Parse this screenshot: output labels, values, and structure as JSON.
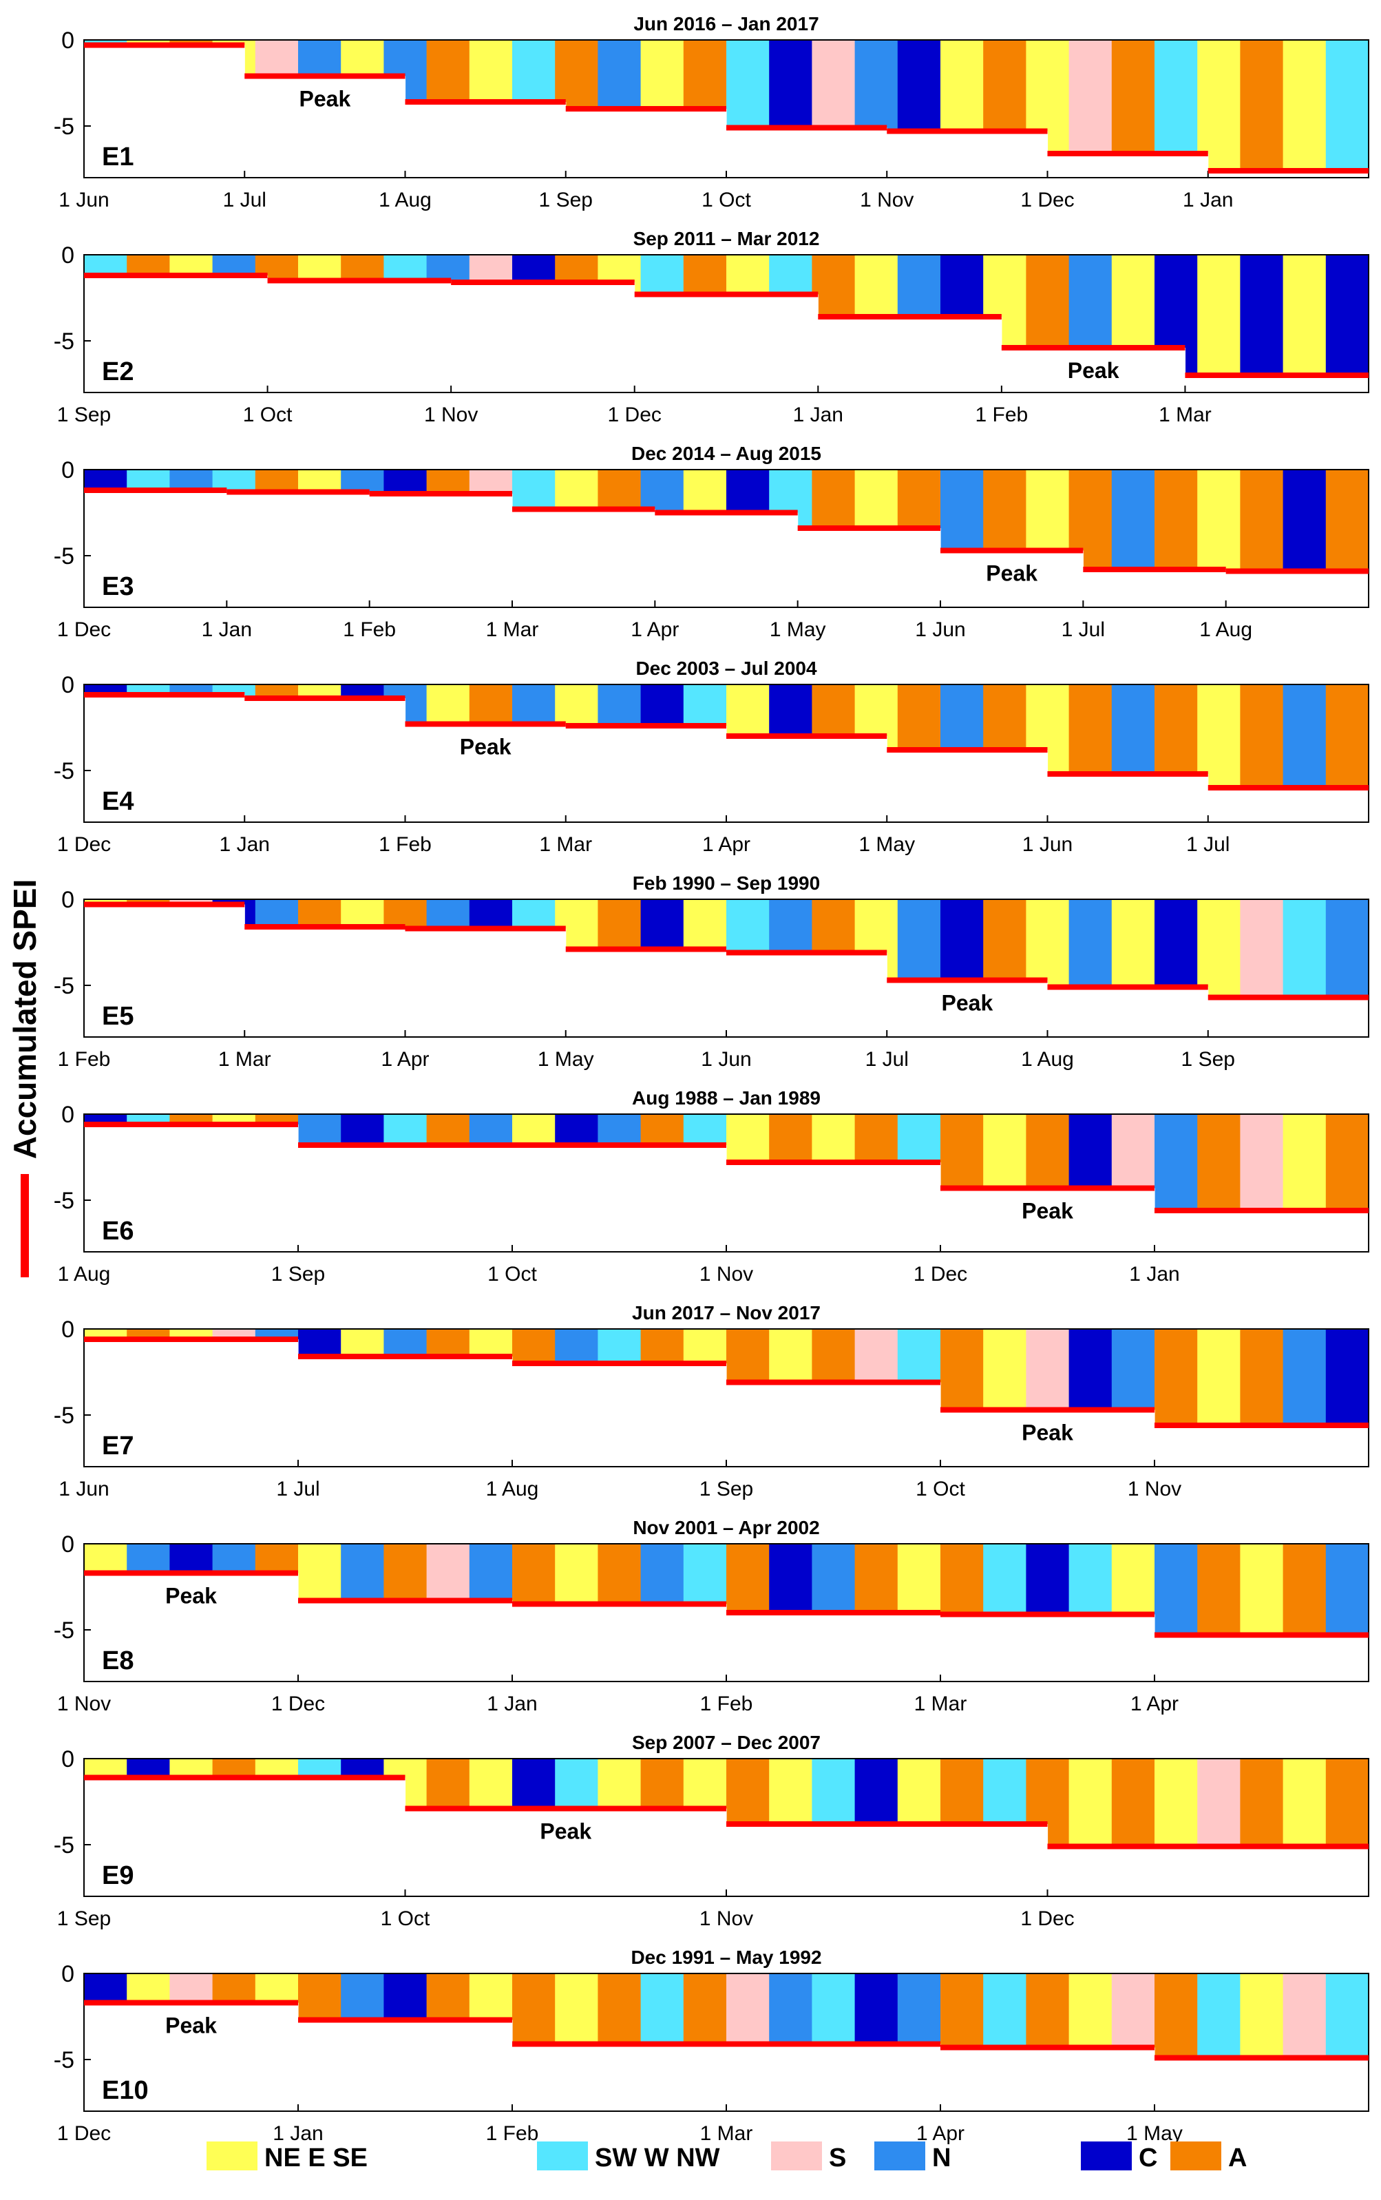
{
  "figure": {
    "y_axis_title": "Accumulated SPEI",
    "ylim": [
      -8,
      0
    ],
    "y_ticks": [
      "0",
      "-5"
    ],
    "y_tick_values": [
      0,
      -5
    ]
  },
  "legend": [
    {
      "label": "NE  E  SE",
      "color": "#ffff55"
    },
    {
      "label": "SW  W  NW",
      "color": "#55e6ff"
    },
    {
      "label": "S",
      "color": "#ffc8c8"
    },
    {
      "label": "N",
      "color": "#2e8cf0"
    },
    {
      "label": "C",
      "color": "#0000cc"
    },
    {
      "label": "A",
      "color": "#f58200"
    }
  ],
  "colors": {
    "NE_E_SE": "#ffff55",
    "SW_W_NW": "#55e6ff",
    "S": "#ffc8c8",
    "N": "#2e8cf0",
    "C": "#0000cc",
    "A": "#f58200",
    "spei_line": "#ff0000",
    "axis": "#000000"
  },
  "chart_data": [
    {
      "type": "step-line over categorical weather-type timeline",
      "event": "E1",
      "title": "Jun 2016 – Jan 2017",
      "month_ticks": [
        "1 Jun",
        "1 Jul",
        "1 Aug",
        "1 Sep",
        "1 Oct",
        "1 Nov",
        "1 Dec",
        "1 Jan"
      ],
      "months": 8,
      "steps": [
        -0.3,
        -2.1,
        -3.6,
        -4.0,
        -5.1,
        -5.3,
        -6.6,
        -7.6
      ],
      "peak_month_index": 1,
      "weather_types": [
        "SW_W_NW",
        "NE_E_SE",
        "A",
        "NE_E_SE",
        "S",
        "N",
        "NE_E_SE",
        "N",
        "A",
        "NE_E_SE",
        "SW_W_NW",
        "A",
        "N",
        "NE_E_SE",
        "A",
        "SW_W_NW",
        "C",
        "S",
        "N",
        "C",
        "NE_E_SE",
        "A",
        "NE_E_SE",
        "S",
        "A",
        "SW_W_NW",
        "NE_E_SE",
        "A",
        "NE_E_SE",
        "SW_W_NW"
      ]
    },
    {
      "type": "step-line over categorical weather-type timeline",
      "event": "E2",
      "title": "Sep 2011 – Mar 2012",
      "month_ticks": [
        "1 Sep",
        "1 Oct",
        "1 Nov",
        "1 Dec",
        "1 Jan",
        "1 Feb",
        "1 Mar"
      ],
      "months": 7,
      "steps": [
        -1.2,
        -1.5,
        -1.6,
        -2.3,
        -3.6,
        -5.4,
        -7.0
      ],
      "peak_month_index": 5,
      "weather_types": [
        "SW_W_NW",
        "A",
        "NE_E_SE",
        "N",
        "A",
        "NE_E_SE",
        "A",
        "SW_W_NW",
        "N",
        "S",
        "C",
        "A",
        "NE_E_SE",
        "SW_W_NW",
        "A",
        "NE_E_SE",
        "SW_W_NW",
        "A",
        "NE_E_SE",
        "N",
        "C",
        "NE_E_SE",
        "A",
        "N",
        "NE_E_SE",
        "C",
        "NE_E_SE",
        "C",
        "NE_E_SE",
        "C"
      ]
    },
    {
      "type": "step-line over categorical weather-type timeline",
      "event": "E3",
      "title": "Dec 2014 – Aug 2015",
      "month_ticks": [
        "1 Dec",
        "1 Jan",
        "1 Feb",
        "1 Mar",
        "1 Apr",
        "1 May",
        "1 Jun",
        "1 Jul",
        "1 Aug"
      ],
      "months": 9,
      "steps": [
        -1.2,
        -1.3,
        -1.4,
        -2.3,
        -2.5,
        -3.4,
        -4.7,
        -5.8,
        -5.9
      ],
      "peak_month_index": 6,
      "weather_types": [
        "C",
        "SW_W_NW",
        "N",
        "SW_W_NW",
        "A",
        "NE_E_SE",
        "N",
        "C",
        "A",
        "S",
        "SW_W_NW",
        "NE_E_SE",
        "A",
        "N",
        "NE_E_SE",
        "C",
        "SW_W_NW",
        "A",
        "NE_E_SE",
        "A",
        "N",
        "A",
        "NE_E_SE",
        "A",
        "N",
        "A",
        "NE_E_SE",
        "A",
        "C",
        "A"
      ]
    },
    {
      "type": "step-line over categorical weather-type timeline",
      "event": "E4",
      "title": "Dec 2003 – Jul 2004",
      "month_ticks": [
        "1 Dec",
        "1 Jan",
        "1 Feb",
        "1 Mar",
        "1 Apr",
        "1 May",
        "1 Jun",
        "1 Jul"
      ],
      "months": 8,
      "steps": [
        -0.6,
        -0.8,
        -2.3,
        -2.4,
        -3.0,
        -3.8,
        -5.2,
        -6.0
      ],
      "peak_month_index": 2,
      "weather_types": [
        "C",
        "SW_W_NW",
        "N",
        "SW_W_NW",
        "A",
        "NE_E_SE",
        "C",
        "N",
        "NE_E_SE",
        "A",
        "N",
        "NE_E_SE",
        "N",
        "C",
        "SW_W_NW",
        "NE_E_SE",
        "C",
        "A",
        "NE_E_SE",
        "A",
        "N",
        "A",
        "NE_E_SE",
        "A",
        "N",
        "A",
        "NE_E_SE",
        "A",
        "N",
        "A"
      ]
    },
    {
      "type": "step-line over categorical weather-type timeline",
      "event": "E5",
      "title": "Feb 1990 – Sep 1990",
      "month_ticks": [
        "1 Feb",
        "1 Mar",
        "1 Apr",
        "1 May",
        "1 Jun",
        "1 Jul",
        "1 Aug",
        "1 Sep"
      ],
      "months": 8,
      "steps": [
        -0.3,
        -1.6,
        -1.7,
        -2.9,
        -3.1,
        -4.7,
        -5.1,
        -5.7
      ],
      "peak_month_index": 5,
      "weather_types": [
        "NE_E_SE",
        "A",
        "S",
        "C",
        "N",
        "A",
        "NE_E_SE",
        "A",
        "N",
        "C",
        "SW_W_NW",
        "NE_E_SE",
        "A",
        "C",
        "NE_E_SE",
        "SW_W_NW",
        "N",
        "A",
        "NE_E_SE",
        "N",
        "C",
        "A",
        "NE_E_SE",
        "N",
        "NE_E_SE",
        "C",
        "NE_E_SE",
        "S",
        "SW_W_NW",
        "N"
      ]
    },
    {
      "type": "step-line over categorical weather-type timeline",
      "event": "E6",
      "title": "Aug 1988 – Jan 1989",
      "month_ticks": [
        "1 Aug",
        "1 Sep",
        "1 Oct",
        "1 Nov",
        "1 Dec",
        "1 Jan"
      ],
      "months": 6,
      "steps": [
        -0.6,
        -1.8,
        -1.8,
        -2.8,
        -4.3,
        -5.6
      ],
      "peak_month_index": 4,
      "weather_types": [
        "C",
        "SW_W_NW",
        "A",
        "NE_E_SE",
        "A",
        "N",
        "C",
        "SW_W_NW",
        "A",
        "N",
        "NE_E_SE",
        "C",
        "N",
        "A",
        "SW_W_NW",
        "NE_E_SE",
        "A",
        "NE_E_SE",
        "A",
        "SW_W_NW",
        "A",
        "NE_E_SE",
        "A",
        "C",
        "S",
        "N",
        "A",
        "S",
        "NE_E_SE",
        "A"
      ]
    },
    {
      "type": "step-line over categorical weather-type timeline",
      "event": "E7",
      "title": "Jun 2017 – Nov 2017",
      "month_ticks": [
        "1 Jun",
        "1 Jul",
        "1 Aug",
        "1 Sep",
        "1 Oct",
        "1 Nov"
      ],
      "months": 6,
      "steps": [
        -0.6,
        -1.6,
        -2.0,
        -3.1,
        -4.7,
        -5.6
      ],
      "peak_month_index": 4,
      "weather_types": [
        "NE_E_SE",
        "A",
        "NE_E_SE",
        "S",
        "N",
        "C",
        "NE_E_SE",
        "N",
        "A",
        "NE_E_SE",
        "A",
        "N",
        "SW_W_NW",
        "A",
        "NE_E_SE",
        "A",
        "NE_E_SE",
        "A",
        "S",
        "SW_W_NW",
        "A",
        "NE_E_SE",
        "S",
        "C",
        "N",
        "A",
        "NE_E_SE",
        "A",
        "N",
        "C"
      ]
    },
    {
      "type": "step-line over categorical weather-type timeline",
      "event": "E8",
      "title": "Nov 2001 – Apr 2002",
      "month_ticks": [
        "1 Nov",
        "1 Dec",
        "1 Jan",
        "1 Feb",
        "1 Mar",
        "1 Apr"
      ],
      "months": 6,
      "steps": [
        -1.7,
        -3.3,
        -3.5,
        -4.0,
        -4.1,
        -5.3
      ],
      "peak_month_index": 0,
      "weather_types": [
        "NE_E_SE",
        "N",
        "C",
        "N",
        "A",
        "NE_E_SE",
        "N",
        "A",
        "S",
        "N",
        "A",
        "NE_E_SE",
        "A",
        "N",
        "SW_W_NW",
        "A",
        "C",
        "N",
        "A",
        "NE_E_SE",
        "A",
        "SW_W_NW",
        "C",
        "SW_W_NW",
        "NE_E_SE",
        "N",
        "A",
        "NE_E_SE",
        "A",
        "N"
      ]
    },
    {
      "type": "step-line over categorical weather-type timeline",
      "event": "E9",
      "title": "Sep 2007 – Dec 2007",
      "month_ticks": [
        "1 Sep",
        "1 Oct",
        "1 Nov",
        "1 Dec"
      ],
      "months": 4,
      "steps": [
        -1.1,
        -2.9,
        -3.8,
        -5.1
      ],
      "peak_month_index": 1,
      "weather_types": [
        "NE_E_SE",
        "C",
        "NE_E_SE",
        "A",
        "NE_E_SE",
        "SW_W_NW",
        "C",
        "NE_E_SE",
        "A",
        "NE_E_SE",
        "C",
        "SW_W_NW",
        "NE_E_SE",
        "A",
        "NE_E_SE",
        "A",
        "NE_E_SE",
        "SW_W_NW",
        "C",
        "NE_E_SE",
        "A",
        "SW_W_NW",
        "A",
        "NE_E_SE",
        "A",
        "NE_E_SE",
        "S",
        "A",
        "NE_E_SE",
        "A"
      ]
    },
    {
      "type": "step-line over categorical weather-type timeline",
      "event": "E10",
      "title": "Dec 1991 – May 1992",
      "month_ticks": [
        "1 Dec",
        "1 Jan",
        "1 Feb",
        "1 Mar",
        "1 Apr",
        "1 May"
      ],
      "months": 6,
      "steps": [
        -1.7,
        -2.7,
        -4.1,
        -4.1,
        -4.3,
        -4.9
      ],
      "peak_month_index": 0,
      "weather_types": [
        "C",
        "NE_E_SE",
        "S",
        "A",
        "NE_E_SE",
        "A",
        "N",
        "C",
        "A",
        "NE_E_SE",
        "A",
        "NE_E_SE",
        "A",
        "SW_W_NW",
        "A",
        "S",
        "N",
        "SW_W_NW",
        "C",
        "N",
        "A",
        "SW_W_NW",
        "A",
        "NE_E_SE",
        "S",
        "A",
        "SW_W_NW",
        "NE_E_SE",
        "S",
        "SW_W_NW"
      ]
    }
  ]
}
